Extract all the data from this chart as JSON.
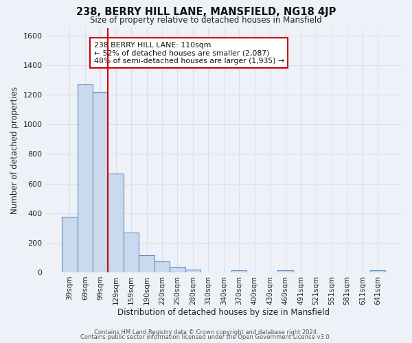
{
  "title": "238, BERRY HILL LANE, MANSFIELD, NG18 4JP",
  "subtitle": "Size of property relative to detached houses in Mansfield",
  "xlabel": "Distribution of detached houses by size in Mansfield",
  "ylabel": "Number of detached properties",
  "footer_line1": "Contains HM Land Registry data © Crown copyright and database right 2024.",
  "footer_line2": "Contains public sector information licensed under the Open Government Licence v3.0.",
  "bar_labels": [
    "39sqm",
    "69sqm",
    "99sqm",
    "129sqm",
    "159sqm",
    "190sqm",
    "220sqm",
    "250sqm",
    "280sqm",
    "310sqm",
    "340sqm",
    "370sqm",
    "400sqm",
    "430sqm",
    "460sqm",
    "491sqm",
    "521sqm",
    "551sqm",
    "581sqm",
    "611sqm",
    "641sqm"
  ],
  "bar_values": [
    375,
    1270,
    1220,
    665,
    270,
    115,
    75,
    38,
    20,
    0,
    0,
    15,
    0,
    0,
    15,
    0,
    0,
    0,
    0,
    0,
    15
  ],
  "bar_color": "#c9d9ee",
  "bar_edge_color": "#6090c8",
  "vline_x": 2.5,
  "vline_color": "#cc0000",
  "ylim": [
    0,
    1650
  ],
  "annotation_text": "238 BERRY HILL LANE: 110sqm\n← 52% of detached houses are smaller (2,087)\n48% of semi-detached houses are larger (1,935) →",
  "background_color": "#eef2f8",
  "plot_bg_color": "#eef2f8",
  "grid_color": "#d8e0ec",
  "yticks": [
    0,
    200,
    400,
    600,
    800,
    1000,
    1200,
    1400,
    1600
  ]
}
